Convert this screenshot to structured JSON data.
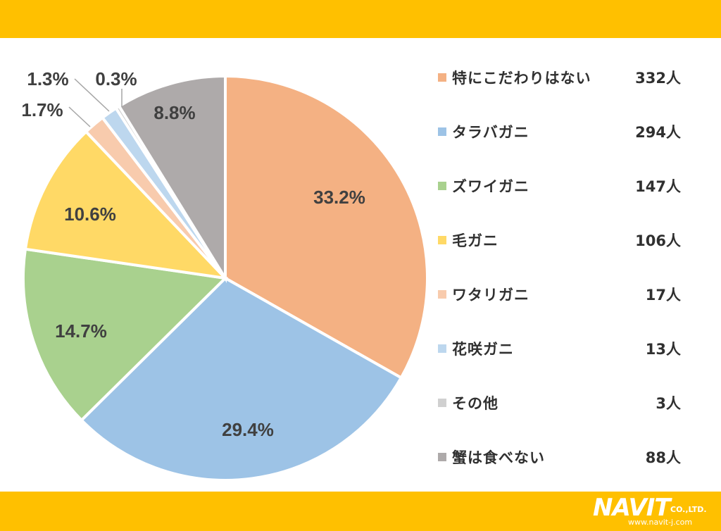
{
  "chart_data": {
    "type": "pie",
    "title": "",
    "start_angle_deg": 0,
    "direction": "clockwise",
    "slices": [
      {
        "label": "特にこだわりはない",
        "count": "332人",
        "value": 332,
        "percent_label": "33.2%",
        "color": "#f4b183"
      },
      {
        "label": "タラバガニ",
        "count": "294人",
        "value": 294,
        "percent_label": "29.4%",
        "color": "#9dc3e6"
      },
      {
        "label": "ズワイガニ",
        "count": "147人",
        "value": 147,
        "percent_label": "14.7%",
        "color": "#a9d18e"
      },
      {
        "label": "毛ガニ",
        "count": "106人",
        "value": 106,
        "percent_label": "10.6%",
        "color": "#ffd966"
      },
      {
        "label": "ワタリガニ",
        "count": "17人",
        "value": 17,
        "percent_label": "1.7%",
        "color": "#f8cbad"
      },
      {
        "label": "花咲ガニ",
        "count": "13人",
        "value": 13,
        "percent_label": "1.3%",
        "color": "#bdd7ee"
      },
      {
        "label": "その他",
        "count": "3人",
        "value": 3,
        "percent_label": "0.3%",
        "color": "#d0d0d0"
      },
      {
        "label": "蟹は食べない",
        "count": "88人",
        "value": 88,
        "percent_label": "8.8%",
        "color": "#aeaaaa"
      }
    ],
    "legend_position": "right"
  },
  "colors": {
    "band": "#ffc000",
    "text": "#404040"
  },
  "logo": {
    "brand": "NAVIT",
    "suffix": "CO.,LTD.",
    "url": "www.navit-j.com"
  }
}
